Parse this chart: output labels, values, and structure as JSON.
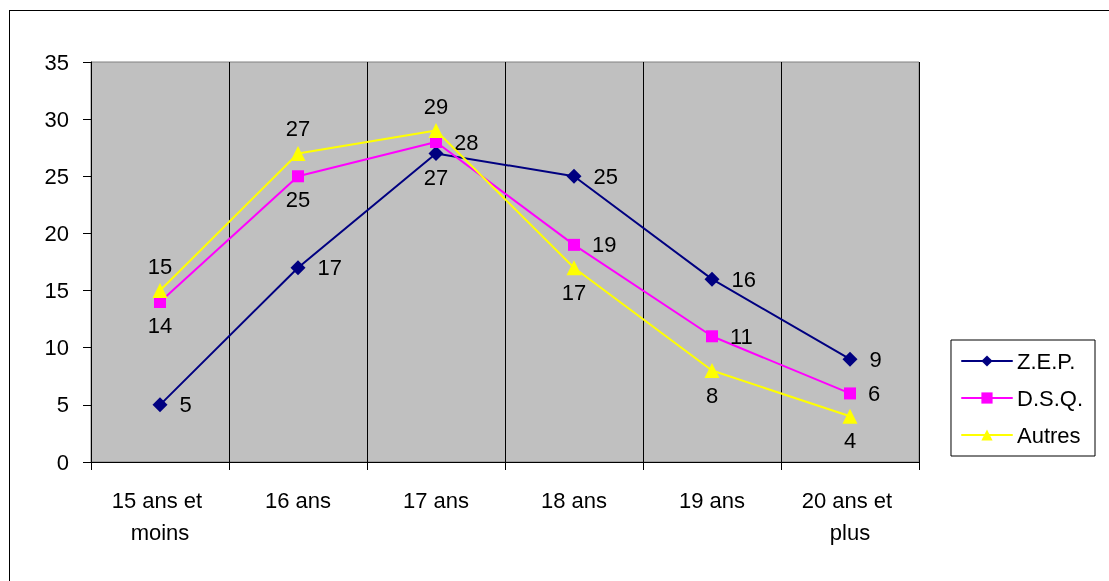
{
  "chart_data": {
    "type": "line",
    "categories": [
      "15 ans et moins",
      "16 ans",
      "17 ans",
      "18 ans",
      "19 ans",
      "20 ans et plus"
    ],
    "series": [
      {
        "name": "Z.E.P.",
        "color": "#000080",
        "marker": "diamond",
        "values": [
          5,
          17,
          27,
          25,
          16,
          9
        ]
      },
      {
        "name": "D.S.Q.",
        "color": "#ff00ff",
        "marker": "square",
        "values": [
          14,
          25,
          28,
          19,
          11,
          6
        ]
      },
      {
        "name": "Autres",
        "color": "#ffff00",
        "marker": "triangle",
        "values": [
          15,
          27,
          29,
          17,
          8,
          4
        ]
      }
    ],
    "ylim": [
      0,
      35
    ],
    "yticks": [
      0,
      5,
      10,
      15,
      20,
      25,
      30,
      35
    ],
    "grid": "x",
    "legend": "right",
    "data_labels": true
  }
}
